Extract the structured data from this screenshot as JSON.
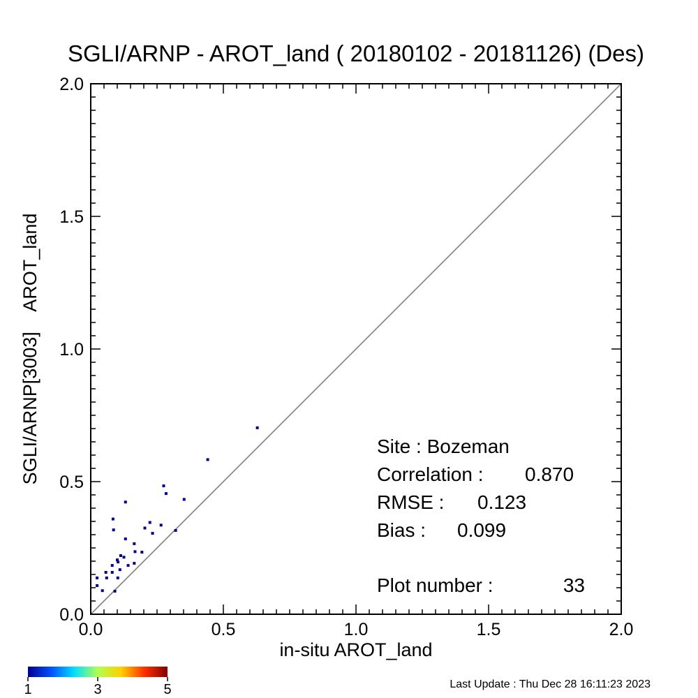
{
  "chart_data": {
    "type": "scatter",
    "title": "SGLI/ARNP - AROT_land ( 20180102 - 20181126) (Des)",
    "xlabel": "in-situ AROT_land",
    "ylabel": "SGLI/ARNP[3003]    AROT_land",
    "xlim": [
      0,
      2
    ],
    "ylim": [
      0,
      2
    ],
    "xticks": [
      "0.0",
      "0.5",
      "1.0",
      "1.5",
      "2.0"
    ],
    "yticks": [
      "0.0",
      "0.5",
      "1.0",
      "1.5",
      "2.0"
    ],
    "one_to_one_line": true,
    "grid": false,
    "points": [
      {
        "x": 0.628,
        "y": 0.703
      },
      {
        "x": 0.441,
        "y": 0.583
      },
      {
        "x": 0.275,
        "y": 0.484
      },
      {
        "x": 0.284,
        "y": 0.455
      },
      {
        "x": 0.352,
        "y": 0.433
      },
      {
        "x": 0.131,
        "y": 0.423
      },
      {
        "x": 0.084,
        "y": 0.359
      },
      {
        "x": 0.223,
        "y": 0.346
      },
      {
        "x": 0.265,
        "y": 0.336
      },
      {
        "x": 0.204,
        "y": 0.325
      },
      {
        "x": 0.086,
        "y": 0.318
      },
      {
        "x": 0.32,
        "y": 0.316
      },
      {
        "x": 0.233,
        "y": 0.305
      },
      {
        "x": 0.131,
        "y": 0.284
      },
      {
        "x": 0.164,
        "y": 0.266
      },
      {
        "x": 0.167,
        "y": 0.236
      },
      {
        "x": 0.193,
        "y": 0.234
      },
      {
        "x": 0.113,
        "y": 0.221
      },
      {
        "x": 0.125,
        "y": 0.215
      },
      {
        "x": 0.1,
        "y": 0.205
      },
      {
        "x": 0.103,
        "y": 0.197
      },
      {
        "x": 0.164,
        "y": 0.192
      },
      {
        "x": 0.141,
        "y": 0.184
      },
      {
        "x": 0.081,
        "y": 0.184
      },
      {
        "x": 0.11,
        "y": 0.168
      },
      {
        "x": 0.057,
        "y": 0.158
      },
      {
        "x": 0.081,
        "y": 0.158
      },
      {
        "x": 0.024,
        "y": 0.137
      },
      {
        "x": 0.06,
        "y": 0.137
      },
      {
        "x": 0.102,
        "y": 0.137
      },
      {
        "x": 0.024,
        "y": 0.108
      },
      {
        "x": 0.044,
        "y": 0.089
      },
      {
        "x": 0.091,
        "y": 0.087
      }
    ],
    "point_color": "#00008b",
    "line_color": "#808080",
    "colorbar": {
      "ticks": [
        "1",
        "3",
        "5"
      ],
      "colors": [
        "#00008f",
        "#0050ff",
        "#00e0ff",
        "#b0ff50",
        "#ffd000",
        "#ff3000",
        "#800000"
      ]
    }
  },
  "stats": {
    "site": "Site : Bozeman",
    "correlation_label": "Correlation :",
    "correlation_value": "0.870",
    "rmse_label": "RMSE :",
    "rmse_value": "0.123",
    "bias_label": "Bias :",
    "bias_value": "0.099",
    "plot_number_label": "Plot number :",
    "plot_number_value": "33"
  },
  "footer": {
    "last_update": "Last Update : Thu Dec 28 16:11:23 2023"
  }
}
